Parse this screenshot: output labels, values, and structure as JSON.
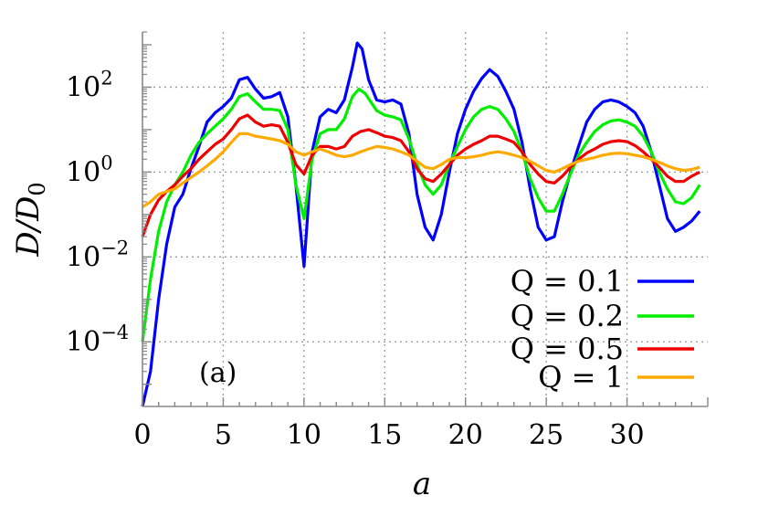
{
  "chart_data": {
    "type": "line",
    "title": "",
    "xlabel": "a",
    "ylabel": "D/D0",
    "ylabel_parts": {
      "base": "D/D",
      "sub": "0"
    },
    "xlim": [
      0,
      35
    ],
    "ylim": [
      3e-06,
      2000
    ],
    "yscale": "log",
    "grid": true,
    "legend_position": "bottom-right",
    "annotation": "(a)",
    "x_ticks": [
      {
        "value": 0,
        "label": "0"
      },
      {
        "value": 5,
        "label": "5"
      },
      {
        "value": 10,
        "label": "10"
      },
      {
        "value": 15,
        "label": "15"
      },
      {
        "value": 20,
        "label": "20"
      },
      {
        "value": 25,
        "label": "25"
      },
      {
        "value": 30,
        "label": "30"
      }
    ],
    "y_ticks": [
      {
        "value": 100,
        "base": "10",
        "exp": "2"
      },
      {
        "value": 1,
        "base": "10",
        "exp": "0"
      },
      {
        "value": 0.01,
        "base": "10",
        "exp": "−2"
      },
      {
        "value": 0.0001,
        "base": "10",
        "exp": "−4"
      }
    ],
    "series": [
      {
        "name": "Q = 0.1",
        "color": "#0000ff",
        "points": [
          [
            0,
            3e-06
          ],
          [
            0.5,
            2e-05
          ],
          [
            1,
            0.001
          ],
          [
            1.5,
            0.02
          ],
          [
            2,
            0.15
          ],
          [
            2.5,
            0.3
          ],
          [
            3,
            1.2
          ],
          [
            3.5,
            4
          ],
          [
            4,
            15
          ],
          [
            4.5,
            25
          ],
          [
            5,
            35
          ],
          [
            5.5,
            55
          ],
          [
            6,
            150
          ],
          [
            6.5,
            170
          ],
          [
            7,
            90
          ],
          [
            7.5,
            55
          ],
          [
            8,
            60
          ],
          [
            8.5,
            75
          ],
          [
            9,
            20
          ],
          [
            9.5,
            0.5
          ],
          [
            10,
            0.006
          ],
          [
            10.5,
            3
          ],
          [
            11,
            20
          ],
          [
            11.5,
            30
          ],
          [
            12,
            25
          ],
          [
            12.5,
            50
          ],
          [
            13,
            300
          ],
          [
            13.3,
            1100
          ],
          [
            13.6,
            800
          ],
          [
            14,
            150
          ],
          [
            14.5,
            50
          ],
          [
            15,
            45
          ],
          [
            15.5,
            50
          ],
          [
            16,
            40
          ],
          [
            16.5,
            8
          ],
          [
            17,
            0.3
          ],
          [
            17.5,
            0.05
          ],
          [
            18,
            0.025
          ],
          [
            18.5,
            0.1
          ],
          [
            19,
            1
          ],
          [
            19.5,
            8
          ],
          [
            20,
            30
          ],
          [
            20.5,
            80
          ],
          [
            21,
            160
          ],
          [
            21.5,
            260
          ],
          [
            22,
            180
          ],
          [
            22.5,
            80
          ],
          [
            23,
            30
          ],
          [
            23.5,
            5
          ],
          [
            24,
            0.4
          ],
          [
            24.5,
            0.05
          ],
          [
            25,
            0.025
          ],
          [
            25.5,
            0.03
          ],
          [
            26,
            0.2
          ],
          [
            26.5,
            1
          ],
          [
            27,
            4
          ],
          [
            27.5,
            15
          ],
          [
            28,
            30
          ],
          [
            28.5,
            45
          ],
          [
            29,
            50
          ],
          [
            29.5,
            45
          ],
          [
            30,
            35
          ],
          [
            30.5,
            25
          ],
          [
            31,
            12
          ],
          [
            31.5,
            3
          ],
          [
            32,
            0.5
          ],
          [
            32.5,
            0.08
          ],
          [
            33,
            0.04
          ],
          [
            33.5,
            0.05
          ],
          [
            34,
            0.07
          ],
          [
            34.5,
            0.12
          ]
        ]
      },
      {
        "name": "Q = 0.2",
        "color": "#00ee00",
        "points": [
          [
            0,
            0.0001
          ],
          [
            0.5,
            0.003
          ],
          [
            1,
            0.04
          ],
          [
            1.5,
            0.2
          ],
          [
            2,
            0.5
          ],
          [
            2.5,
            1
          ],
          [
            3,
            2.5
          ],
          [
            3.5,
            5
          ],
          [
            4,
            8
          ],
          [
            4.5,
            12
          ],
          [
            5,
            18
          ],
          [
            5.5,
            30
          ],
          [
            6,
            60
          ],
          [
            6.5,
            70
          ],
          [
            7,
            45
          ],
          [
            7.5,
            30
          ],
          [
            8,
            30
          ],
          [
            8.5,
            28
          ],
          [
            9,
            10
          ],
          [
            9.5,
            0.5
          ],
          [
            10,
            0.08
          ],
          [
            10.5,
            2
          ],
          [
            11,
            8
          ],
          [
            11.5,
            10
          ],
          [
            12,
            10
          ],
          [
            12.5,
            18
          ],
          [
            13,
            60
          ],
          [
            13.4,
            90
          ],
          [
            13.8,
            70
          ],
          [
            14.5,
            28
          ],
          [
            15,
            22
          ],
          [
            15.5,
            20
          ],
          [
            16,
            17
          ],
          [
            16.5,
            6
          ],
          [
            17,
            1.5
          ],
          [
            17.5,
            0.5
          ],
          [
            18,
            0.3
          ],
          [
            18.5,
            0.5
          ],
          [
            19,
            1.5
          ],
          [
            19.5,
            4
          ],
          [
            20,
            10
          ],
          [
            20.5,
            20
          ],
          [
            21,
            30
          ],
          [
            21.5,
            35
          ],
          [
            22,
            30
          ],
          [
            22.5,
            18
          ],
          [
            23,
            9
          ],
          [
            23.5,
            3
          ],
          [
            24,
            0.7
          ],
          [
            24.5,
            0.25
          ],
          [
            25,
            0.12
          ],
          [
            25.5,
            0.12
          ],
          [
            26,
            0.3
          ],
          [
            26.5,
            0.9
          ],
          [
            27,
            2.5
          ],
          [
            27.5,
            5
          ],
          [
            28,
            9
          ],
          [
            28.5,
            13
          ],
          [
            29,
            16
          ],
          [
            29.5,
            17
          ],
          [
            30,
            15
          ],
          [
            30.5,
            12
          ],
          [
            31,
            7
          ],
          [
            31.5,
            3
          ],
          [
            32,
            1
          ],
          [
            32.5,
            0.4
          ],
          [
            33,
            0.2
          ],
          [
            33.5,
            0.18
          ],
          [
            34,
            0.25
          ],
          [
            34.5,
            0.5
          ]
        ]
      },
      {
        "name": "Q = 0.5",
        "color": "#ee0000",
        "points": [
          [
            0,
            0.03
          ],
          [
            0.5,
            0.1
          ],
          [
            1,
            0.22
          ],
          [
            1.5,
            0.35
          ],
          [
            2,
            0.5
          ],
          [
            2.5,
            0.8
          ],
          [
            3,
            1.2
          ],
          [
            3.5,
            2
          ],
          [
            4,
            3
          ],
          [
            4.5,
            4.5
          ],
          [
            5,
            6
          ],
          [
            5.5,
            10
          ],
          [
            6,
            18
          ],
          [
            6.5,
            22
          ],
          [
            7,
            15
          ],
          [
            7.5,
            12
          ],
          [
            8,
            13
          ],
          [
            8.5,
            12
          ],
          [
            9,
            5
          ],
          [
            9.5,
            1.5
          ],
          [
            10,
            0.9
          ],
          [
            10.5,
            2.5
          ],
          [
            11,
            4
          ],
          [
            11.5,
            4
          ],
          [
            12,
            3.5
          ],
          [
            12.5,
            4
          ],
          [
            13,
            7
          ],
          [
            13.5,
            9
          ],
          [
            14,
            10
          ],
          [
            14.5,
            8.5
          ],
          [
            15,
            7
          ],
          [
            15.5,
            6.5
          ],
          [
            16,
            5.5
          ],
          [
            16.5,
            3
          ],
          [
            17,
            1.2
          ],
          [
            17.5,
            0.7
          ],
          [
            18,
            0.6
          ],
          [
            18.5,
            0.9
          ],
          [
            19,
            1.5
          ],
          [
            19.5,
            2.5
          ],
          [
            20,
            3.5
          ],
          [
            20.5,
            4.5
          ],
          [
            21,
            5.5
          ],
          [
            21.5,
            7
          ],
          [
            22,
            7
          ],
          [
            22.5,
            6
          ],
          [
            23,
            5
          ],
          [
            23.5,
            3
          ],
          [
            24,
            1.5
          ],
          [
            24.5,
            0.9
          ],
          [
            25,
            0.6
          ],
          [
            25.5,
            0.55
          ],
          [
            26,
            0.8
          ],
          [
            26.5,
            1.3
          ],
          [
            27,
            2
          ],
          [
            27.5,
            2.8
          ],
          [
            28,
            3.5
          ],
          [
            28.5,
            4.5
          ],
          [
            29,
            5.2
          ],
          [
            29.5,
            5.5
          ],
          [
            30,
            5.2
          ],
          [
            30.5,
            4.2
          ],
          [
            31,
            3
          ],
          [
            31.5,
            2
          ],
          [
            32,
            1.3
          ],
          [
            32.5,
            0.8
          ],
          [
            33,
            0.6
          ],
          [
            33.5,
            0.6
          ],
          [
            34,
            0.8
          ],
          [
            34.5,
            1
          ]
        ]
      },
      {
        "name": "Q = 1",
        "color": "#ffaa00",
        "points": [
          [
            0,
            0.15
          ],
          [
            0.5,
            0.2
          ],
          [
            1,
            0.3
          ],
          [
            1.5,
            0.35
          ],
          [
            2,
            0.4
          ],
          [
            2.5,
            0.55
          ],
          [
            3,
            0.75
          ],
          [
            3.5,
            1
          ],
          [
            4,
            1.4
          ],
          [
            4.5,
            2
          ],
          [
            5,
            3
          ],
          [
            5.5,
            5
          ],
          [
            6,
            8
          ],
          [
            6.5,
            8
          ],
          [
            7,
            7
          ],
          [
            7.5,
            6.5
          ],
          [
            8,
            6
          ],
          [
            8.5,
            5.5
          ],
          [
            9,
            4.5
          ],
          [
            9.5,
            3
          ],
          [
            10,
            2.5
          ],
          [
            10.5,
            3
          ],
          [
            11,
            3.5
          ],
          [
            11.5,
            3
          ],
          [
            12,
            2.5
          ],
          [
            12.5,
            2.3
          ],
          [
            13,
            2.5
          ],
          [
            13.5,
            3
          ],
          [
            14,
            3.5
          ],
          [
            14.5,
            4
          ],
          [
            15,
            3.8
          ],
          [
            15.5,
            3.5
          ],
          [
            16,
            3
          ],
          [
            16.5,
            2.5
          ],
          [
            17,
            1.8
          ],
          [
            17.5,
            1.3
          ],
          [
            18,
            1.2
          ],
          [
            18.5,
            1.5
          ],
          [
            19,
            2
          ],
          [
            19.5,
            2.2
          ],
          [
            20,
            2.2
          ],
          [
            20.5,
            2.3
          ],
          [
            21,
            2.5
          ],
          [
            21.5,
            2.8
          ],
          [
            22,
            3
          ],
          [
            22.5,
            2.8
          ],
          [
            23,
            2.5
          ],
          [
            23.5,
            2.2
          ],
          [
            24,
            1.8
          ],
          [
            24.5,
            1.4
          ],
          [
            25,
            1.1
          ],
          [
            25.5,
            1
          ],
          [
            26,
            1.2
          ],
          [
            26.5,
            1.5
          ],
          [
            27,
            1.8
          ],
          [
            27.5,
            2
          ],
          [
            28,
            2.2
          ],
          [
            28.5,
            2.5
          ],
          [
            29,
            2.7
          ],
          [
            29.5,
            2.8
          ],
          [
            30,
            2.7
          ],
          [
            30.5,
            2.5
          ],
          [
            31,
            2.3
          ],
          [
            31.5,
            2
          ],
          [
            32,
            1.7
          ],
          [
            32.5,
            1.4
          ],
          [
            33,
            1.2
          ],
          [
            33.5,
            1.1
          ],
          [
            34,
            1.15
          ],
          [
            34.5,
            1.3
          ]
        ]
      }
    ]
  }
}
